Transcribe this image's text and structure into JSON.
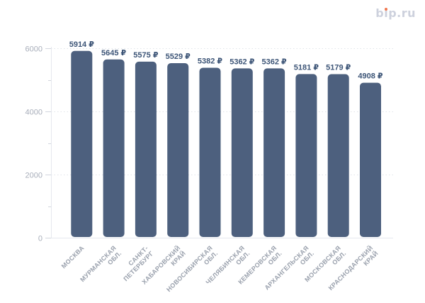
{
  "logo": {
    "text": "bip.ru",
    "color": "#cdd1dd",
    "dot_color": "#f0764e"
  },
  "chart_data": {
    "type": "bar",
    "title": "",
    "xlabel": "",
    "ylabel": "",
    "categories": [
      "МОСКВА",
      "МУРМАНСКАЯ ОБЛ.",
      "САНКТ-ПЕТЕРБУРГ",
      "ХАБАРОВСКИЙ КРАЙ",
      "НОВОСИБИРСКАЯ ОБЛ.",
      "ЧЕЛЯБИНСКАЯ ОБЛ.",
      "КЕМЕРОВСКАЯ ОБЛ.",
      "АРХАНГЕЛЬСКАЯ ОБЛ.",
      "МОСКОВСКАЯ ОБЛ.",
      "КРАСНОДАРСКИЙ КРАЙ"
    ],
    "values": [
      5914,
      5645,
      5575,
      5529,
      5382,
      5362,
      5362,
      5181,
      5179,
      4908
    ],
    "value_suffix": "₽",
    "ylim": [
      0,
      6000
    ],
    "yticks": [
      0,
      2000,
      4000,
      6000
    ],
    "ytick_labels": [
      "0",
      "2000",
      "4000",
      "6000"
    ],
    "minor_yticks": [
      1000,
      3000,
      5000
    ],
    "grid": "horizontal-dotted",
    "legend": "none",
    "colors": {
      "bar": "#4d607e",
      "data_label": "#3d5577",
      "y_tick_label": "#a8aeba",
      "x_tick_label": "#9aa1ad",
      "grid_line": "#e0e4ea",
      "axis_line": "#e5e8ee",
      "tick_mark": "#d2d6de"
    }
  }
}
